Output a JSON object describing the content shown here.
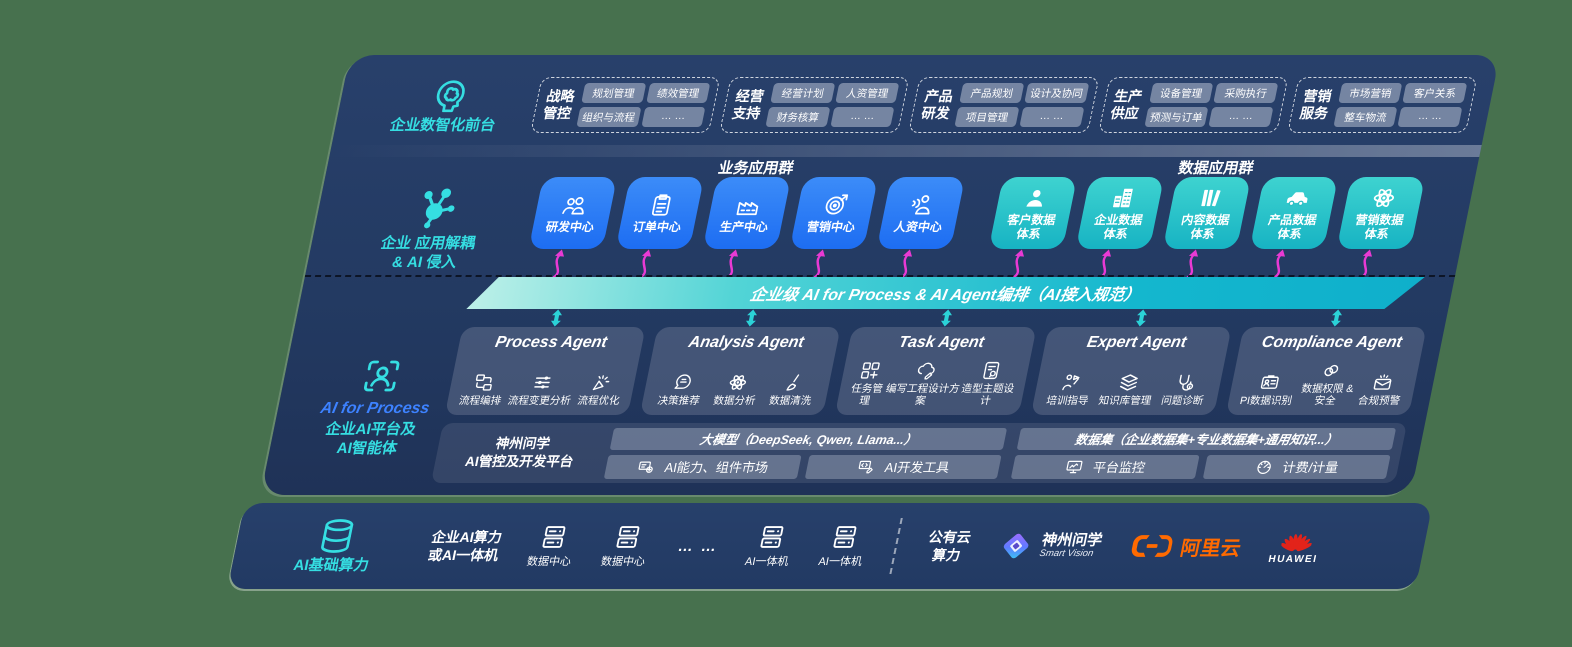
{
  "layer1": {
    "label": "企业数智化前台",
    "groups": [
      {
        "name": "战略\n管控",
        "chips": [
          "规划管理",
          "绩效管理",
          "组织与流程",
          "… …"
        ]
      },
      {
        "name": "经营\n支持",
        "chips": [
          "经营计划",
          "人资管理",
          "财务核算",
          "… …"
        ]
      },
      {
        "name": "产品\n研发",
        "chips": [
          "产品规划",
          "设计及协同",
          "项目管理",
          "… …"
        ]
      },
      {
        "name": "生产\n供应",
        "chips": [
          "设备管理",
          "采购执行",
          "预测与订单",
          "… …"
        ]
      },
      {
        "name": "营销\n服务",
        "chips": [
          "市场营销",
          "客户关系",
          "整车物流",
          "… …"
        ]
      }
    ]
  },
  "layer2": {
    "label": "企业 应用解耦\n& AI 侵入",
    "business": {
      "title": "业务应用群",
      "tiles": [
        {
          "icon": "people-icon",
          "label": "研发中心"
        },
        {
          "icon": "clipboard-icon",
          "label": "订单中心"
        },
        {
          "icon": "factory-icon",
          "label": "生产中心"
        },
        {
          "icon": "target-icon",
          "label": "营销中心"
        },
        {
          "icon": "hr-icon",
          "label": "人资中心"
        }
      ]
    },
    "data": {
      "title": "数据应用群",
      "tiles": [
        {
          "icon": "person-icon",
          "label": "客户数据\n体系"
        },
        {
          "icon": "building-icon",
          "label": "企业数据\n体系"
        },
        {
          "icon": "columns-icon",
          "label": "内容数据\n体系"
        },
        {
          "icon": "car-icon",
          "label": "产品数据\n体系"
        },
        {
          "icon": "atom-icon",
          "label": "营销数据\n体系"
        }
      ]
    }
  },
  "banner": {
    "text": "企业级 AI for Process & AI Agent编排（AI接入规范）"
  },
  "layer3": {
    "label_en": "AI for Process",
    "label_cn": "企业AI平台及\nAI智能体",
    "agents": [
      {
        "title": "Process Agent",
        "items": [
          {
            "icon": "flow-icon",
            "label": "流程编排"
          },
          {
            "icon": "sliders-icon",
            "label": "流程变更分析"
          },
          {
            "icon": "spark-icon",
            "label": "流程优化"
          }
        ]
      },
      {
        "title": "Analysis Agent",
        "items": [
          {
            "icon": "decision-icon",
            "label": "决策推荐"
          },
          {
            "icon": "atom-icon",
            "label": "数据分析"
          },
          {
            "icon": "clean-icon",
            "label": "数据清洗"
          }
        ]
      },
      {
        "title": "Task Agent",
        "items": [
          {
            "icon": "task-icon",
            "label": "任务管理"
          },
          {
            "icon": "cloud-edit-icon",
            "label": "编写工程设计方案"
          },
          {
            "icon": "design-icon",
            "label": "造型主题设计"
          }
        ]
      },
      {
        "title": "Expert Agent",
        "items": [
          {
            "icon": "training-icon",
            "label": "培训指导"
          },
          {
            "icon": "layers-icon",
            "label": "知识库管理"
          },
          {
            "icon": "diagnose-icon",
            "label": "问题诊断"
          }
        ]
      },
      {
        "title": "Compliance Agent",
        "items": [
          {
            "icon": "idcard-icon",
            "label": "PI数据识别"
          },
          {
            "icon": "rings-icon",
            "label": "数据权限 &\n安全"
          },
          {
            "icon": "alert-icon",
            "label": "合规预警"
          }
        ]
      }
    ]
  },
  "platform": {
    "label": "神州问学\nAI管控及开发平台",
    "model_bar": "大模型（DeepSeek, Qwen, Llama...）",
    "left_cells": [
      {
        "icon": "market-icon",
        "label": "AI能力、组件市场"
      },
      {
        "icon": "devtools-icon",
        "label": "AI开发工具"
      }
    ],
    "data_bar": "数据集（企业数据集+专业数据集+通用知识...）",
    "right_cells": [
      {
        "icon": "monitor-icon",
        "label": "平台监控"
      },
      {
        "icon": "gauge-icon",
        "label": "计费/计量"
      }
    ]
  },
  "compute": {
    "label": "AI基础算力",
    "enterprise": "企业AI算力\n或AI一体机",
    "nodes": [
      {
        "icon": "server-icon",
        "label": "数据中心"
      },
      {
        "icon": "server-icon",
        "label": "数据中心"
      }
    ],
    "dots": "… …",
    "nodes2": [
      {
        "icon": "server-icon",
        "label": "AI一体机"
      },
      {
        "icon": "server-icon",
        "label": "AI一体机"
      }
    ],
    "public_cloud": "公有云\n算力",
    "vendors": {
      "smartvision": {
        "name": "神州问学",
        "sub": "Smart Vision"
      },
      "aliyun": {
        "name": "阿里云"
      },
      "huawei": {
        "name": "HUAWEI"
      }
    }
  },
  "colors": {
    "background": "#47714E",
    "panel_navy": "#24395F",
    "tile_blue": "#2B7CF4",
    "tile_teal": "#2CC5C8",
    "banner_teal": "#14B7CE",
    "magenta_arrow": "#E93AD4",
    "teal_arrow": "#2BD2D7",
    "accent_teal": "#35DEE2",
    "accent_blue": "#3D82FF",
    "aliyun_orange": "#FF6A00",
    "huawei_red": "#E2231A"
  }
}
